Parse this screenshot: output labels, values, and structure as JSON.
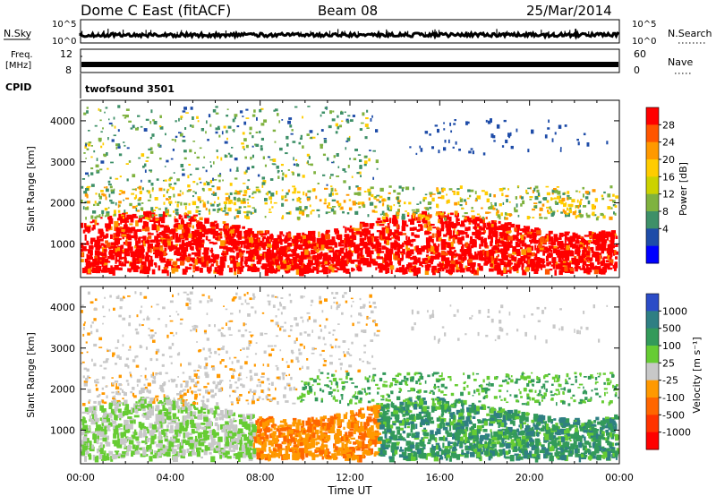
{
  "header": {
    "title": "Dome C East (fitACF)",
    "beam": "Beam 08",
    "date": "25/Mar/2014"
  },
  "summary_panels": {
    "nsky_label": "N.Sky",
    "nsearch_label": "N.Search",
    "noise_ticks": [
      "10^5",
      "10^0"
    ],
    "freq_label_line1": "Freq.",
    "freq_label_line2": "[MHz]",
    "freq_ticks": [
      "12",
      "8"
    ],
    "nave_label": "Nave",
    "nave_ticks": [
      "60",
      "0"
    ],
    "cpid_label": "CPID",
    "cpid_value": "twofsound 3501"
  },
  "chart_data": [
    {
      "type": "heatmap",
      "name": "power",
      "ylabel": "Slant Range [km]",
      "xlabel": "",
      "yticks": [
        "4000",
        "3000",
        "2000",
        "1000"
      ],
      "ylim": [
        180,
        4500
      ],
      "xlim": [
        0,
        24
      ],
      "colorbar": {
        "label": "Power [dB]",
        "ticks": [
          "28",
          "24",
          "20",
          "16",
          "12",
          "8",
          "4"
        ],
        "colors": [
          "#ff0000",
          "#ff5500",
          "#ff9900",
          "#ffcc00",
          "#ccd200",
          "#7fb23f",
          "#3e9068",
          "#1e4ca8",
          "#0000ff"
        ],
        "range": [
          0,
          30
        ]
      }
    },
    {
      "type": "heatmap",
      "name": "velocity",
      "ylabel": "Slant Range [km]",
      "xlabel": "Time UT",
      "xticks": [
        "00:00",
        "04:00",
        "08:00",
        "12:00",
        "16:00",
        "20:00",
        "00:00"
      ],
      "yticks": [
        "4000",
        "3000",
        "2000",
        "1000"
      ],
      "ylim": [
        180,
        4500
      ],
      "xlim": [
        0,
        24
      ],
      "colorbar": {
        "label": "Velocity [m s⁻¹]",
        "ticks": [
          "1000",
          "500",
          "100",
          "25",
          "-25",
          "-100",
          "-500",
          "-1000"
        ],
        "colors": [
          "#2b4cc7",
          "#2f7f83",
          "#339a5a",
          "#66cc33",
          "#c8c8c8",
          "#ff9900",
          "#ff6600",
          "#ff3300",
          "#ff0000"
        ],
        "range": [
          -1000,
          1000
        ]
      }
    }
  ]
}
